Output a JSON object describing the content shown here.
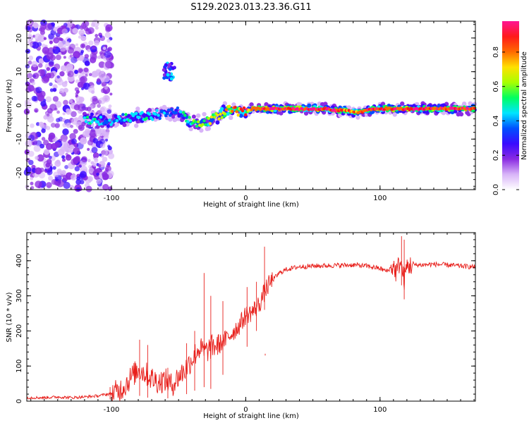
{
  "figure_title": "S129.2023.013.23.36.G11",
  "colorbar": {
    "label": "Normalized spectral amplitude",
    "ticks": [
      "0.0",
      "0.2",
      "0.4",
      "0.6",
      "0.8"
    ],
    "tick_values": [
      0.0,
      0.2,
      0.4,
      0.6,
      0.8
    ],
    "range": [
      0,
      0.98
    ],
    "colors": [
      "#ffffff",
      "#d8b4f8",
      "#8a2be2",
      "#3a0aff",
      "#0050ff",
      "#00e5ff",
      "#00ff60",
      "#a8ff00",
      "#ffe000",
      "#ff6a00",
      "#ff1a1a",
      "#ff1493"
    ]
  },
  "chart_data": [
    {
      "type": "heatmap",
      "title": "",
      "xlabel": "Height of straight line (km)",
      "ylabel": "Frequency (Hz)",
      "xlim": [
        -163,
        171
      ],
      "ylim": [
        -25,
        25
      ],
      "x_ticks": [
        -100,
        0,
        100
      ],
      "x_tick_labels": [
        "-100",
        "0",
        "100"
      ],
      "y_ticks": [
        -20,
        -10,
        0,
        10,
        20
      ],
      "y_tick_labels": [
        "-20",
        "-10",
        "0",
        "10",
        "20"
      ],
      "colormap": "rainbow (white-purple-blue-cyan-green-yellow-red-magenta)",
      "ridge": {
        "x": [
          -120,
          -110,
          -100,
          -90,
          -80,
          -70,
          -60,
          -50,
          -45,
          -40,
          -35,
          -30,
          -25,
          -20,
          -15,
          -10,
          -5,
          0,
          5,
          10,
          20,
          40,
          60,
          65,
          70,
          75,
          80,
          85,
          90,
          95,
          100,
          110,
          120,
          140,
          160,
          171
        ],
        "y": [
          -4,
          -4.5,
          -4.5,
          -4,
          -3.5,
          -3,
          -2.5,
          -2,
          -4,
          -5,
          -5.5,
          -5,
          -4,
          -3,
          -1.5,
          -1,
          -2,
          -1.5,
          -1,
          -1,
          -1,
          -1,
          -1,
          -1.5,
          -1.5,
          -1.5,
          -2,
          -2,
          -1.5,
          -1,
          -1,
          -1,
          -1,
          -1,
          -1,
          -1
        ],
        "amplitude": [
          0.45,
          0.45,
          0.4,
          0.45,
          0.5,
          0.45,
          0.4,
          0.35,
          0.5,
          0.55,
          0.6,
          0.6,
          0.65,
          0.7,
          0.75,
          0.8,
          0.8,
          0.85,
          0.9,
          0.92,
          0.92,
          0.92,
          0.9,
          0.9,
          0.85,
          0.85,
          0.8,
          0.8,
          0.85,
          0.9,
          0.9,
          0.92,
          0.92,
          0.92,
          0.9,
          0.9
        ]
      },
      "feature_blob": {
        "x": -57,
        "y": 10,
        "amplitude": 0.3
      }
    },
    {
      "type": "line",
      "title": "",
      "xlabel": "Height of straight line (km)",
      "ylabel": "SNR (10 * v/v)",
      "xlim": [
        -163,
        171
      ],
      "ylim": [
        0,
        480
      ],
      "x_ticks": [
        -100,
        0,
        100
      ],
      "x_tick_labels": [
        "-100",
        "0",
        "100"
      ],
      "y_ticks": [
        0,
        100,
        200,
        300,
        400
      ],
      "y_tick_labels": [
        "0",
        "100",
        "200",
        "300",
        "400"
      ],
      "color": "#e8201c",
      "series": [
        {
          "x": [
            -163,
            -150,
            -140,
            -130,
            -120,
            -110,
            -100,
            -95,
            -90,
            -85,
            -80,
            -75,
            -70,
            -65,
            -60,
            -55,
            -50,
            -45,
            -40,
            -35,
            -30,
            -25,
            -20,
            -15,
            -10,
            -5,
            0,
            5,
            10,
            15,
            20,
            25,
            30,
            40,
            50,
            60,
            70,
            80,
            90,
            100,
            105,
            110,
            112,
            115,
            118,
            120,
            125,
            130,
            140,
            150,
            160,
            171
          ],
          "y": [
            10,
            10,
            12,
            10,
            12,
            15,
            22,
            28,
            45,
            70,
            90,
            80,
            65,
            55,
            60,
            45,
            70,
            90,
            120,
            150,
            140,
            155,
            160,
            175,
            195,
            215,
            245,
            255,
            275,
            320,
            345,
            365,
            375,
            383,
            385,
            386,
            387,
            388,
            385,
            378,
            370,
            385,
            365,
            400,
            345,
            385,
            388,
            388,
            390,
            388,
            385,
            382
          ]
        }
      ],
      "spikes": {
        "x": [
          -101,
          -79,
          -73,
          -58,
          -44,
          -38,
          -31,
          -26,
          -17,
          1,
          8,
          14,
          14.5,
          116,
          118
        ],
        "y_high": [
          40,
          175,
          160,
          95,
          165,
          200,
          365,
          300,
          285,
          325,
          340,
          440,
          135,
          470,
          460
        ],
        "y_low": [
          5,
          15,
          10,
          8,
          20,
          30,
          40,
          35,
          75,
          155,
          200,
          260,
          130,
          330,
          290
        ]
      }
    }
  ]
}
